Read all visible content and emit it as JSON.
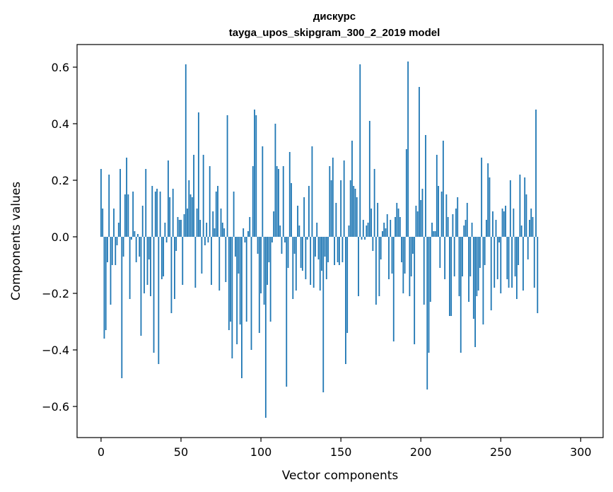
{
  "chart_data": {
    "type": "bar",
    "title": "дискурс",
    "subtitle": "tayga_upos_skipgram_300_2_2019 model",
    "xlabel": "Vector components",
    "ylabel": "Components values",
    "xlim": [
      -15,
      314
    ],
    "ylim": [
      -0.71,
      0.68
    ],
    "x_ticks": [
      0,
      50,
      100,
      150,
      200,
      250,
      300
    ],
    "y_ticks": [
      -0.6,
      -0.4,
      -0.2,
      0.0,
      0.2,
      0.4,
      0.6
    ],
    "y_tick_labels": [
      "−0.6",
      "−0.4",
      "−0.2",
      "0.0",
      "0.2",
      "0.4",
      "0.6"
    ],
    "x_tick_labels": [
      "0",
      "50",
      "100",
      "150",
      "200",
      "250",
      "300"
    ],
    "grid": false,
    "bar_color": "#1f77b4",
    "values": [
      0.24,
      0.1,
      -0.36,
      -0.33,
      -0.09,
      0.22,
      -0.24,
      -0.1,
      0.1,
      -0.1,
      -0.03,
      0.05,
      0.24,
      -0.5,
      -0.07,
      0.15,
      0.28,
      0.15,
      -0.22,
      -0.01,
      0.16,
      0.02,
      -0.09,
      0.01,
      -0.07,
      -0.35,
      0.11,
      -0.2,
      0.24,
      -0.17,
      -0.08,
      -0.21,
      0.18,
      -0.41,
      0.16,
      0.17,
      -0.45,
      0.16,
      -0.15,
      -0.14,
      0.05,
      -0.02,
      0.27,
      0.14,
      -0.27,
      0.17,
      -0.22,
      -0.05,
      0.07,
      0.06,
      0.06,
      -0.17,
      0.08,
      0.61,
      0.1,
      0.2,
      0.15,
      0.14,
      0.29,
      -0.18,
      0.1,
      0.44,
      0.06,
      -0.13,
      0.29,
      -0.03,
      0.05,
      -0.02,
      0.25,
      -0.17,
      0.09,
      0.03,
      0.16,
      0.18,
      -0.19,
      0.1,
      0.05,
      0.03,
      -0.16,
      0.43,
      -0.33,
      -0.3,
      -0.43,
      0.16,
      -0.07,
      -0.38,
      -0.13,
      -0.31,
      -0.5,
      0.03,
      -0.02,
      -0.3,
      0.02,
      0.07,
      -0.4,
      0.25,
      0.45,
      0.43,
      -0.06,
      -0.34,
      -0.2,
      0.32,
      -0.24,
      -0.64,
      -0.17,
      -0.09,
      -0.3,
      -0.02,
      0.09,
      0.4,
      0.25,
      0.24,
      0.04,
      -0.06,
      0.25,
      -0.02,
      -0.53,
      -0.11,
      0.3,
      0.19,
      -0.22,
      -0.06,
      -0.19,
      0.11,
      0.04,
      -0.11,
      -0.12,
      0.14,
      -0.15,
      -0.01,
      0.18,
      -0.17,
      0.32,
      -0.18,
      -0.07,
      0.05,
      -0.08,
      -0.19,
      -0.12,
      -0.55,
      -0.07,
      -0.15,
      -0.09,
      0.25,
      0.2,
      0.28,
      -0.1,
      0.12,
      -0.09,
      -0.1,
      0.2,
      -0.09,
      0.27,
      -0.45,
      -0.34,
      0.04,
      0.2,
      0.34,
      0.18,
      0.17,
      0.14,
      -0.21,
      0.61,
      -0.01,
      0.06,
      -0.01,
      0.04,
      0.05,
      0.41,
      0.1,
      -0.05,
      0.24,
      -0.24,
      0.12,
      -0.21,
      -0.08,
      0.02,
      0.05,
      0.03,
      0.08,
      -0.15,
      0.06,
      -0.13,
      -0.37,
      0.07,
      0.12,
      0.1,
      0.07,
      -0.09,
      -0.2,
      -0.13,
      0.31,
      0.62,
      -0.21,
      -0.14,
      -0.06,
      -0.38,
      0.11,
      0.09,
      0.53,
      0.13,
      0.17,
      -0.24,
      0.36,
      -0.54,
      -0.41,
      -0.23,
      0.05,
      0.02,
      0.02,
      0.29,
      0.18,
      -0.11,
      0.16,
      0.34,
      -0.15,
      0.15,
      0.07,
      -0.28,
      -0.28,
      0.08,
      -0.14,
      0.1,
      0.14,
      -0.21,
      -0.41,
      -0.14,
      0.04,
      0.06,
      0.12,
      -0.23,
      -0.14,
      0.05,
      -0.29,
      -0.39,
      -0.21,
      -0.19,
      -0.11,
      0.28,
      -0.31,
      -0.1,
      0.06,
      0.26,
      0.21,
      -0.26,
      0.09,
      -0.18,
      0.06,
      -0.15,
      -0.02,
      -0.2,
      0.1,
      0.09,
      0.11,
      -0.15,
      -0.18,
      0.2,
      -0.18,
      0.1,
      -0.14,
      -0.22,
      -0.1,
      0.22,
      0.04,
      -0.19,
      0.21,
      0.15,
      -0.08,
      0.06,
      0.1,
      0.07,
      -0.18,
      0.45,
      -0.27
    ]
  }
}
